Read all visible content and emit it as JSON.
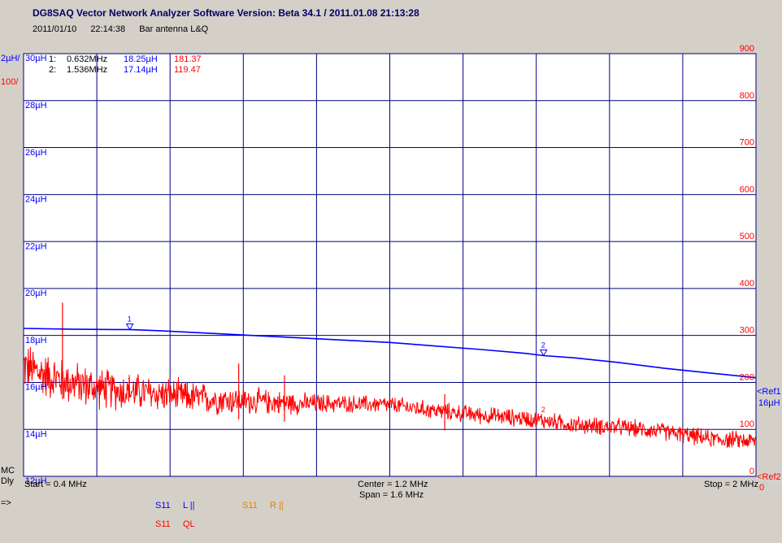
{
  "header": {
    "title": "DG8SAQ Vector Network Analyzer Software    Version:  Beta 34.1 / 2011.01.08 21:13:28",
    "date": "2011/01/10",
    "time": "22:14:38",
    "measurement_name": "Bar antenna L&Q"
  },
  "scale": {
    "left_unit": "2µH/",
    "right_unit": "100/",
    "ref1_label": "<Ref1",
    "ref1_value": "16µH",
    "ref2_label": "<Ref2",
    "ref2_value": "0"
  },
  "markers": [
    {
      "index": "1:",
      "freq": "0.632MHz",
      "l_val": "18.25µH",
      "q_val": "181.37"
    },
    {
      "index": "2:",
      "freq": "1.536MHz",
      "l_val": "17.14µH",
      "q_val": "119.47"
    }
  ],
  "footer": {
    "mode1": "MC",
    "mode2": "Dly",
    "start": "Start = 0.4 MHz",
    "center": "Center = 1.2 MHz",
    "span": "Span = 1.6 MHz",
    "stop": "Stop = 2 MHz",
    "arrow": "=>",
    "legend": [
      {
        "param": "S11",
        "name": "L ||",
        "color": "#0000ff"
      },
      {
        "param": "S11",
        "name": "R ||",
        "color": "#e08000"
      },
      {
        "param": "S11",
        "name": "QL",
        "color": "#ff0000"
      }
    ]
  },
  "colors": {
    "background": "#d4d0c8",
    "plot_background": "#ffffff",
    "grid": "#000080",
    "inductance_trace": "#0000ff",
    "q_trace": "#ff0000"
  },
  "chart_data": {
    "type": "line",
    "xlim": [
      0.4,
      2.0
    ],
    "x_unit": "MHz",
    "x_ticks": [
      0.4,
      0.56,
      0.72,
      0.88,
      1.04,
      1.2,
      1.36,
      1.52,
      1.68,
      1.84,
      2.0
    ],
    "grid": true,
    "left_axis": {
      "ylim": [
        12,
        30
      ],
      "tick_labels": [
        "30µH",
        "28µH",
        "26µH",
        "24µH",
        "22µH",
        "20µH",
        "18µH",
        "16µH",
        "14µH",
        "12µH"
      ],
      "tick_values": [
        30,
        28,
        26,
        24,
        22,
        20,
        18,
        16,
        14,
        12
      ]
    },
    "right_axis": {
      "ylim": [
        0,
        900
      ],
      "tick_labels": [
        "900",
        "800",
        "700",
        "600",
        "500",
        "400",
        "300",
        "200",
        "100",
        "0"
      ],
      "tick_values": [
        900,
        800,
        700,
        600,
        500,
        400,
        300,
        200,
        100,
        0
      ]
    },
    "series": [
      {
        "name": "S11 L ||",
        "axis": "left",
        "color": "#0000ff",
        "x": [
          0.4,
          0.5,
          0.6,
          0.632,
          0.7,
          0.8,
          0.9,
          1.0,
          1.1,
          1.2,
          1.3,
          1.4,
          1.5,
          1.536,
          1.6,
          1.7,
          1.8,
          1.9,
          2.0
        ],
        "y": [
          18.3,
          18.27,
          18.25,
          18.25,
          18.2,
          18.1,
          18.0,
          17.9,
          17.8,
          17.7,
          17.55,
          17.4,
          17.23,
          17.14,
          17.05,
          16.85,
          16.6,
          16.4,
          16.2
        ]
      },
      {
        "name": "S11 QL",
        "axis": "right",
        "color": "#ff0000",
        "x": [
          0.4,
          0.45,
          0.5,
          0.55,
          0.6,
          0.632,
          0.7,
          0.8,
          0.9,
          1.0,
          1.1,
          1.2,
          1.3,
          1.4,
          1.5,
          1.536,
          1.6,
          1.7,
          1.8,
          1.9,
          2.0
        ],
        "y": [
          235,
          215,
          200,
          190,
          183,
          181,
          175,
          165,
          160,
          155,
          155,
          152,
          140,
          130,
          123,
          119,
          110,
          105,
          95,
          80,
          75
        ]
      }
    ],
    "markers": [
      {
        "label": "1",
        "x": 0.632,
        "series": "S11 L ||",
        "y": 18.25
      },
      {
        "label": "2",
        "x": 1.536,
        "series": "S11 L ||",
        "y": 17.14
      },
      {
        "label": "1",
        "x": 0.632,
        "series": "S11 QL",
        "y": 181.37
      },
      {
        "label": "2",
        "x": 1.536,
        "series": "S11 QL",
        "y": 119.47
      }
    ]
  }
}
